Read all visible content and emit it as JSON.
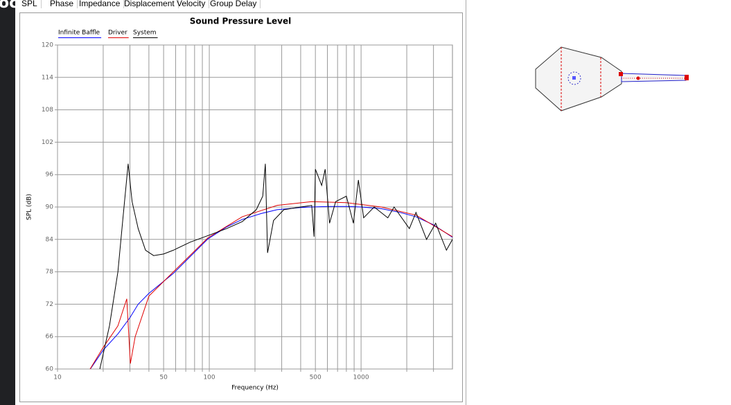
{
  "sidebar_text": "oc",
  "tabs": [
    "SPL",
    "Phase",
    "Impedance",
    "Displacement",
    "Velocity",
    "Group Delay"
  ],
  "chart_data": {
    "type": "line",
    "title": "Sound Pressure Level",
    "x_label": "Frequency (Hz)",
    "y_label": "SPL (dB)",
    "x_scale": "log",
    "grid": true,
    "xlim": [
      10,
      4000
    ],
    "xticks": [
      10,
      50,
      100,
      500,
      1000
    ],
    "x_minor_grid": [
      20,
      30,
      40,
      60,
      70,
      80,
      90,
      200,
      300,
      400,
      600,
      700,
      800,
      900,
      2000,
      3000
    ],
    "ylim": [
      60,
      120
    ],
    "yticks": [
      60,
      66,
      72,
      78,
      84,
      90,
      96,
      102,
      108,
      114,
      120
    ],
    "series": [
      {
        "name": "Infinite Baffle",
        "color": "#0000ff",
        "x": [
          16,
          20,
          25,
          30,
          34,
          40,
          58,
          70,
          98,
          130,
          165,
          220,
          280,
          400,
          473,
          600,
          800,
          1000,
          1357,
          1800,
          2300,
          3000,
          4000
        ],
        "values": [
          59.5,
          63.5,
          66.5,
          69.5,
          72,
          74,
          77.7,
          80,
          84.1,
          86.3,
          87.7,
          88.8,
          89.5,
          89.9,
          90,
          90.1,
          90.1,
          90,
          89.7,
          89,
          88.2,
          86.7,
          84.4
        ]
      },
      {
        "name": "Driver",
        "color": "#e00000",
        "x": [
          16,
          20,
          25,
          28.6,
          30.2,
          32.5,
          40,
          58,
          98,
          165,
          280,
          473,
          800,
          1357,
          2300,
          4000
        ],
        "values": [
          59.5,
          64,
          68,
          73,
          61,
          66,
          73.5,
          78,
          84.3,
          88.2,
          90.3,
          91,
          90.8,
          90,
          88.5,
          84.5
        ]
      },
      {
        "name": "System",
        "color": "#000000",
        "x": [
          19,
          22,
          25,
          27,
          29.2,
          31,
          34,
          38,
          43,
          50,
          58,
          75,
          98,
          130,
          165,
          204,
          225,
          234,
          242,
          265,
          310,
          400,
          473,
          490,
          500,
          550,
          580,
          620,
          680,
          800,
          890,
          960,
          1040,
          1220,
          1500,
          1650,
          2080,
          2300,
          2700,
          3100,
          3650,
          4000
        ],
        "values": [
          60,
          68,
          78,
          88,
          98,
          91,
          86,
          82,
          81,
          81.3,
          82,
          83.5,
          84.7,
          86,
          87.3,
          89.5,
          92,
          98,
          81.5,
          87.5,
          89.5,
          90,
          90.3,
          84.5,
          97,
          94,
          97,
          87,
          91,
          92,
          87,
          95,
          88,
          90,
          88,
          90,
          86,
          89,
          84,
          87,
          82,
          84
        ]
      }
    ]
  }
}
